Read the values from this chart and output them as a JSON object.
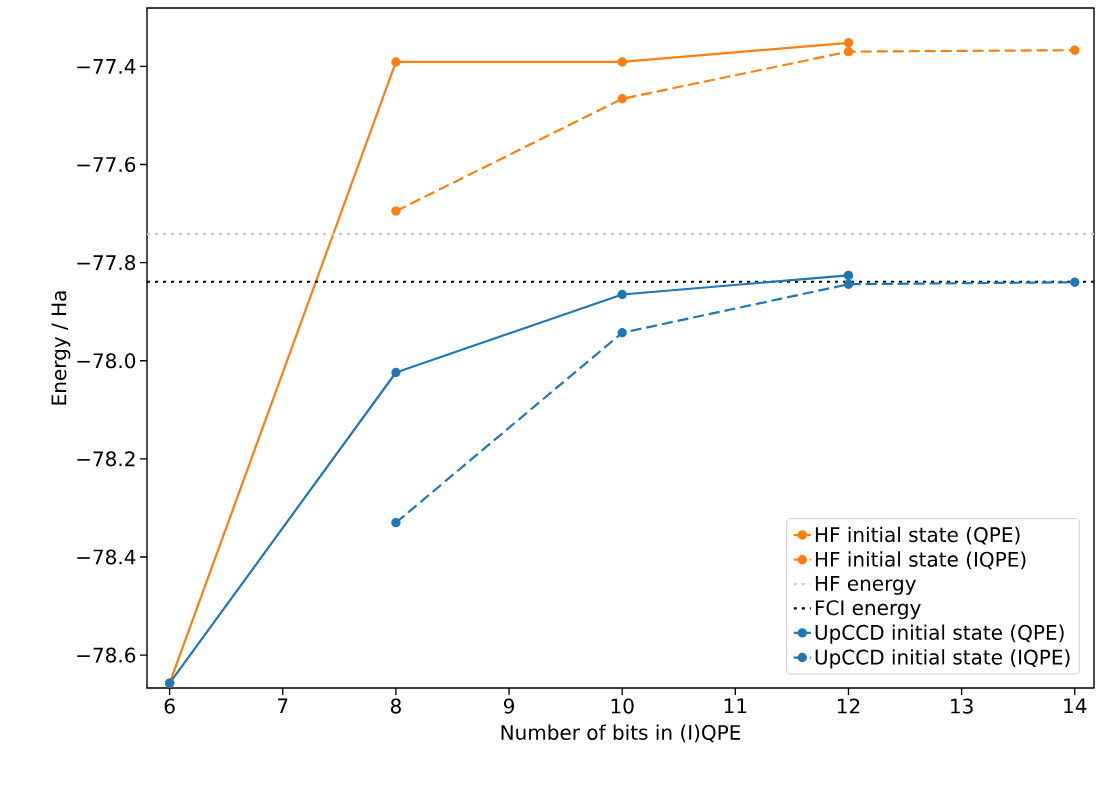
{
  "chart_data": {
    "type": "line",
    "xlabel": "Number of bits in (I)QPE",
    "ylabel": "Energy / Ha",
    "x": [
      6,
      8,
      10,
      12,
      14
    ],
    "series": [
      {
        "name": "HF initial state (QPE)",
        "color": "#ff7f0e",
        "line_style": "solid",
        "values": [
          -78.657,
          -77.391,
          -77.391,
          -77.352,
          null
        ]
      },
      {
        "name": "HF initial state (IQPE)",
        "color": "#ff7f0e",
        "line_style": "dashed",
        "values": [
          null,
          -77.695,
          -77.466,
          -77.37,
          -77.367
        ]
      },
      {
        "name": "UpCCD initial state (QPE)",
        "color": "#1f77b4",
        "line_style": "solid",
        "values": [
          -78.657,
          -78.024,
          -77.865,
          -77.826,
          null
        ]
      },
      {
        "name": "UpCCD initial state (IQPE)",
        "color": "#1f77b4",
        "line_style": "dashed",
        "values": [
          null,
          -78.33,
          -77.943,
          -77.844,
          -77.84
        ]
      }
    ],
    "ref_lines": [
      {
        "axis": "y",
        "value": -77.742,
        "label": "HF energy",
        "color": "#cccccc",
        "line_style": "dotted"
      },
      {
        "axis": "y",
        "value": -77.839,
        "label": "FCI energy",
        "color": "#000000",
        "line_style": "dotted"
      }
    ],
    "marker": "circle",
    "legend": "bottom right",
    "grid": false,
    "xlim": [
      5.8,
      14.17
    ],
    "ylim": [
      -78.667,
      -77.281
    ],
    "xticks": [
      6,
      7,
      8,
      9,
      10,
      11,
      12,
      13,
      14
    ],
    "yticks": [
      {
        "value": -78.6,
        "label": "−78.6"
      },
      {
        "value": -78.4,
        "label": "−78.4"
      },
      {
        "value": -78.2,
        "label": "−78.2"
      },
      {
        "value": -78.0,
        "label": "−78.0"
      },
      {
        "value": -77.8,
        "label": "−77.8"
      },
      {
        "value": -77.6,
        "label": "−77.6"
      },
      {
        "value": -77.4,
        "label": "−77.4"
      }
    ]
  }
}
